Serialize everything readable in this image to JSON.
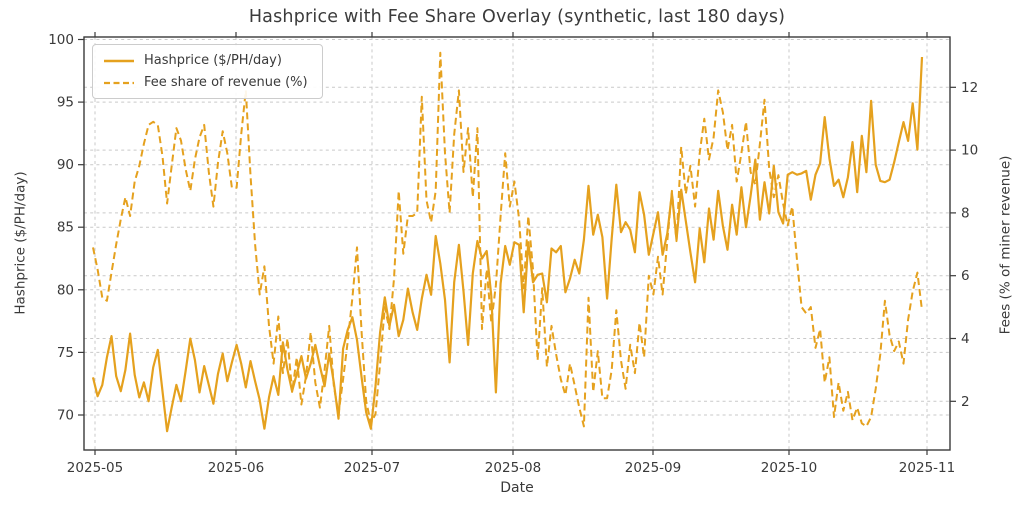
{
  "chart_data": {
    "type": "line",
    "title": "Hashprice with Fee Share Overlay (synthetic, last 180 days)",
    "xlabel": "Date",
    "ylabel_left": "Hashprice ($/PH/day)",
    "ylabel_right": "Fees (% of miner revenue)",
    "x_tick_labels": [
      "2025-05",
      "2025-06",
      "2025-07",
      "2025-08",
      "2025-09",
      "2025-10",
      "2025-11"
    ],
    "y_left_ticks": [
      70,
      75,
      80,
      85,
      90,
      95,
      100
    ],
    "y_right_ticks": [
      2,
      4,
      6,
      8,
      10,
      12
    ],
    "ylim_left": [
      67.2,
      100.2
    ],
    "ylim_right": [
      0.45,
      13.6
    ],
    "grid": true,
    "legend_position": "upper left",
    "line_color": "#E5A11E",
    "series": [
      {
        "name": "Hashprice ($/PH/day)",
        "axis": "left",
        "style": "solid",
        "values": [
          73.0,
          71.5,
          72.4,
          74.6,
          76.3,
          73.1,
          71.9,
          73.6,
          76.5,
          73.2,
          71.4,
          72.6,
          71.1,
          73.8,
          75.2,
          71.9,
          68.7,
          70.6,
          72.4,
          71.1,
          73.5,
          76.1,
          74.4,
          71.8,
          73.9,
          72.4,
          70.9,
          73.3,
          74.9,
          72.7,
          74.2,
          75.6,
          74.1,
          72.2,
          74.3,
          72.7,
          71.2,
          68.9,
          71.4,
          73.1,
          71.6,
          75.8,
          73.6,
          71.9,
          73.3,
          74.7,
          72.9,
          74.1,
          75.6,
          73.9,
          72.3,
          74.9,
          72.6,
          69.7,
          75.3,
          76.8,
          77.8,
          76.0,
          73.0,
          70.2,
          68.9,
          72.3,
          76.6,
          79.4,
          77.1,
          78.8,
          76.3,
          77.6,
          80.1,
          78.2,
          76.8,
          79.3,
          81.2,
          79.6,
          84.3,
          82.1,
          79.2,
          74.2,
          80.6,
          83.6,
          79.9,
          75.6,
          81.3,
          83.9,
          82.5,
          83.1,
          79.5,
          71.8,
          80.5,
          83.5,
          82.0,
          83.8,
          83.6,
          78.2,
          83.8,
          80.6,
          81.2,
          81.3,
          79.0,
          83.3,
          83.0,
          83.5,
          79.8,
          80.9,
          82.4,
          81.3,
          84.0,
          88.3,
          84.4,
          86.0,
          84.2,
          79.3,
          84.1,
          88.4,
          84.6,
          85.4,
          84.8,
          83.0,
          87.8,
          86.0,
          82.8,
          84.5,
          86.2,
          82.8,
          84.5,
          87.7,
          84.0,
          88.0,
          85.5,
          83.0,
          80.6,
          84.9,
          82.2,
          86.5,
          84.0,
          87.9,
          85.1,
          83.2,
          86.8,
          84.4,
          88.2,
          85.0,
          87.5,
          90.4,
          85.6,
          88.6,
          86.1,
          89.9,
          86.2,
          85.3,
          89.2,
          89.4,
          89.2,
          89.3,
          89.5,
          87.2,
          89.2,
          90.1,
          93.8,
          90.5,
          88.3,
          88.8,
          87.4,
          89.0,
          91.8,
          87.8,
          92.3,
          89.4,
          95.1,
          90.0,
          88.7,
          88.6,
          88.8,
          90.2,
          91.8,
          93.4,
          91.9,
          94.9,
          91.2,
          98.6
        ]
      },
      {
        "name": "Fee share of revenue (%)",
        "axis": "right",
        "style": "dashed",
        "values": [
          6.9,
          6.2,
          5.3,
          5.2,
          6.1,
          7.0,
          7.8,
          8.5,
          7.9,
          9.0,
          9.5,
          10.2,
          10.8,
          10.9,
          10.8,
          9.8,
          8.3,
          9.5,
          10.7,
          10.3,
          9.4,
          8.7,
          9.7,
          10.4,
          10.8,
          9.3,
          8.2,
          9.6,
          10.6,
          9.9,
          8.8,
          8.8,
          10.5,
          11.9,
          9.2,
          7.0,
          5.4,
          6.3,
          4.4,
          3.2,
          4.7,
          2.9,
          4.0,
          2.3,
          3.4,
          1.9,
          2.8,
          4.2,
          2.6,
          1.8,
          3.0,
          4.4,
          2.5,
          1.6,
          2.7,
          3.9,
          5.3,
          6.9,
          4.2,
          2.0,
          1.3,
          1.6,
          3.2,
          5.0,
          4.3,
          5.9,
          8.7,
          6.7,
          7.9,
          7.9,
          8.0,
          11.7,
          8.4,
          7.7,
          8.7,
          13.1,
          9.9,
          8.0,
          10.5,
          11.9,
          9.3,
          10.7,
          8.5,
          10.7,
          4.3,
          6.2,
          4.5,
          5.7,
          7.9,
          9.9,
          8.2,
          9.0,
          7.8,
          5.6,
          7.9,
          6.2,
          3.3,
          5.6,
          3.1,
          4.4,
          3.5,
          2.7,
          2.2,
          3.2,
          2.5,
          1.8,
          1.2,
          5.3,
          2.3,
          3.6,
          2.1,
          2.1,
          3.0,
          4.9,
          3.3,
          2.4,
          3.8,
          2.9,
          4.5,
          3.4,
          6.0,
          5.4,
          6.6,
          5.4,
          7.1,
          8.7,
          7.1,
          10.1,
          8.6,
          9.5,
          8.2,
          9.9,
          11.0,
          9.7,
          10.4,
          11.9,
          11.2,
          10.0,
          10.8,
          9.0,
          9.9,
          10.9,
          9.3,
          8.9,
          10.2,
          11.6,
          9.4,
          8.5,
          9.2,
          8.3,
          7.6,
          8.2,
          6.5,
          5.0,
          4.8,
          5.0,
          3.7,
          4.3,
          2.6,
          3.4,
          1.5,
          2.6,
          1.7,
          2.3,
          1.4,
          1.8,
          1.3,
          1.2,
          1.5,
          2.4,
          3.5,
          5.2,
          4.1,
          3.6,
          3.9,
          3.2,
          4.6,
          5.5,
          6.1,
          4.9
        ]
      }
    ]
  }
}
